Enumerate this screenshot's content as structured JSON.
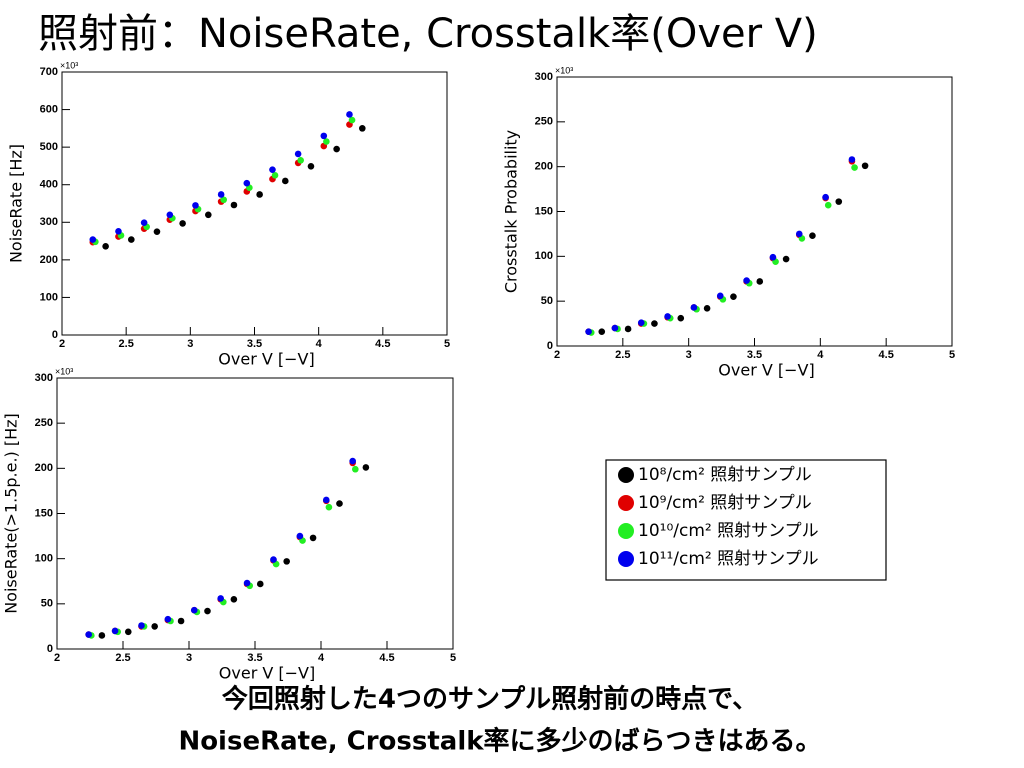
{
  "title": "照射前：NoiseRate, Crosstalk率(Over V)",
  "caption": [
    "今回照射した4つのサンプル照射前の時点で、",
    "NoiseRate, Crosstalk率に多少のばらつきはある。"
  ],
  "chart_data": [
    {
      "type": "scatter",
      "xlabel": "Over V [−V]",
      "ylabel": "NoiseRate [Hz]",
      "y_multiplier": "×10³",
      "xlim": [
        2,
        5
      ],
      "xticks": [
        2,
        2.5,
        3,
        3.5,
        4,
        4.5,
        5
      ],
      "ylim": [
        0,
        700
      ],
      "yticks": [
        0,
        100,
        200,
        300,
        400,
        500,
        600,
        700
      ],
      "series": [
        {
          "name": "10⁸/cm² 照射サンプル",
          "color": "#000000",
          "x": [
            2.34,
            2.54,
            2.74,
            2.94,
            3.14,
            3.34,
            3.54,
            3.74,
            3.94,
            4.14,
            4.34
          ],
          "values": [
            236,
            254,
            275,
            297,
            320,
            346,
            374,
            410,
            449,
            495,
            550
          ]
        },
        {
          "name": "10⁹/cm² 照射サンプル",
          "color": "#e00000",
          "x": [
            2.24,
            2.44,
            2.64,
            2.84,
            3.04,
            3.24,
            3.44,
            3.64,
            3.84,
            4.04,
            4.24
          ],
          "values": [
            247,
            262,
            283,
            307,
            330,
            355,
            382,
            415,
            458,
            503,
            560
          ]
        },
        {
          "name": "10¹⁰/cm² 照射サンプル",
          "color": "#22ee22",
          "x": [
            2.26,
            2.46,
            2.66,
            2.86,
            3.06,
            3.26,
            3.46,
            3.66,
            3.86,
            4.06,
            4.26
          ],
          "values": [
            248,
            265,
            288,
            311,
            335,
            360,
            392,
            425,
            465,
            515,
            572
          ]
        },
        {
          "name": "10¹¹/cm² 照射サンプル",
          "color": "#0000ee",
          "x": [
            2.24,
            2.44,
            2.64,
            2.84,
            3.04,
            3.24,
            3.44,
            3.64,
            3.84,
            4.04,
            4.24
          ],
          "values": [
            254,
            276,
            299,
            320,
            345,
            374,
            404,
            440,
            482,
            530,
            587
          ]
        }
      ]
    },
    {
      "type": "scatter",
      "xlabel": "Over V [−V]",
      "ylabel": "Crosstalk Probability",
      "y_multiplier": "×10³",
      "xlim": [
        2,
        5
      ],
      "xticks": [
        2,
        2.5,
        3,
        3.5,
        4,
        4.5,
        5
      ],
      "ylim": [
        0,
        300
      ],
      "yticks": [
        0,
        50,
        100,
        150,
        200,
        250,
        300
      ],
      "series": [
        {
          "color": "#000000",
          "x": [
            2.34,
            2.54,
            2.74,
            2.94,
            3.14,
            3.34,
            3.54,
            3.74,
            3.94,
            4.14,
            4.34
          ],
          "values": [
            16,
            19,
            25,
            31,
            42,
            55,
            72,
            97,
            123,
            161,
            201
          ]
        },
        {
          "color": "#e00000",
          "x": [
            2.24,
            2.44,
            2.64,
            2.84,
            3.04,
            3.24,
            3.44,
            3.64,
            3.84,
            4.04,
            4.24
          ],
          "values": [
            16,
            20,
            25,
            32,
            43,
            55,
            72,
            98,
            124,
            165,
            206
          ]
        },
        {
          "color": "#22ee22",
          "x": [
            2.26,
            2.46,
            2.66,
            2.86,
            3.06,
            3.26,
            3.46,
            3.66,
            3.86,
            4.06,
            4.26
          ],
          "values": [
            15,
            19,
            25,
            31,
            41,
            52,
            70,
            94,
            120,
            157,
            199
          ]
        },
        {
          "color": "#0000ee",
          "x": [
            2.24,
            2.44,
            2.64,
            2.84,
            3.04,
            3.24,
            3.44,
            3.64,
            3.84,
            4.04,
            4.24
          ],
          "values": [
            16,
            20,
            26,
            33,
            43,
            56,
            73,
            99,
            125,
            166,
            208
          ]
        }
      ]
    },
    {
      "type": "scatter",
      "xlabel": "Over V [−V]",
      "ylabel": "NoiseRate(>1.5p.e.) [Hz]",
      "y_multiplier": "×10³",
      "xlim": [
        2,
        5
      ],
      "xticks": [
        2,
        2.5,
        3,
        3.5,
        4,
        4.5,
        5
      ],
      "ylim": [
        0,
        300
      ],
      "yticks": [
        0,
        50,
        100,
        150,
        200,
        250,
        300
      ],
      "series": [
        {
          "color": "#000000",
          "x": [
            2.34,
            2.54,
            2.74,
            2.94,
            3.14,
            3.34,
            3.54,
            3.74,
            3.94,
            4.14,
            4.34
          ],
          "values": [
            15,
            19,
            25,
            31,
            42,
            55,
            72,
            97,
            123,
            161,
            201
          ]
        },
        {
          "color": "#e00000",
          "x": [
            2.24,
            2.44,
            2.64,
            2.84,
            3.04,
            3.24,
            3.44,
            3.64,
            3.84,
            4.04,
            4.24
          ],
          "values": [
            16,
            20,
            25,
            32,
            43,
            55,
            72,
            98,
            124,
            164,
            206
          ]
        },
        {
          "color": "#22ee22",
          "x": [
            2.26,
            2.46,
            2.66,
            2.86,
            3.06,
            3.26,
            3.46,
            3.66,
            3.86,
            4.06,
            4.26
          ],
          "values": [
            15,
            19,
            25,
            31,
            41,
            52,
            70,
            94,
            120,
            157,
            199
          ]
        },
        {
          "color": "#0000ee",
          "x": [
            2.24,
            2.44,
            2.64,
            2.84,
            3.04,
            3.24,
            3.44,
            3.64,
            3.84,
            4.04,
            4.24
          ],
          "values": [
            16,
            20,
            26,
            33,
            43,
            56,
            73,
            99,
            125,
            165,
            208
          ]
        }
      ]
    }
  ]
}
